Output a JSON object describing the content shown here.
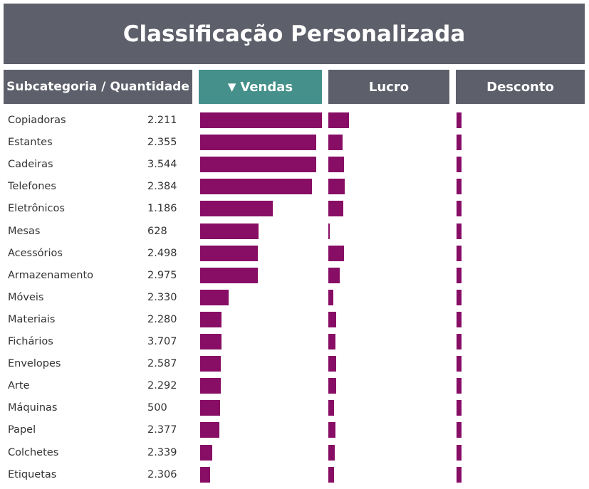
{
  "title": "Classificação Personalizada",
  "headers": {
    "subcategory": "Subcategoria / Quantidade",
    "sales": "Vendas",
    "sales_sort_icon": "sort-descending-icon",
    "profit": "Lucro",
    "discount": "Desconto"
  },
  "colors": {
    "header_bg": "#5d5f6a",
    "active_header_bg": "#45908b",
    "bar": "#870d65",
    "text": "#333333"
  },
  "chart_data": {
    "type": "bar",
    "orientation": "horizontal",
    "sort": "sales-descending",
    "categories": [
      "Copiadoras",
      "Estantes",
      "Cadeiras",
      "Telefones",
      "Eletrônicos",
      "Mesas",
      "Acessórios",
      "Armazenamento",
      "Móveis",
      "Materiais",
      "Fichários",
      "Envelopes",
      "Arte",
      "Máquinas",
      "Papel",
      "Colchetes",
      "Etiquetas"
    ],
    "quantity_labels": [
      "2.211",
      "2.355",
      "3.544",
      "2.384",
      "1.186",
      "628",
      "2.498",
      "2.975",
      "2.330",
      "2.280",
      "3.707",
      "2.587",
      "2.292",
      "500",
      "2.377",
      "2.339",
      "2.306"
    ],
    "series": [
      {
        "name": "Vendas",
        "values": [
          1.0,
          0.955,
          0.955,
          0.918,
          0.595,
          0.479,
          0.474,
          0.474,
          0.234,
          0.175,
          0.175,
          0.17,
          0.17,
          0.164,
          0.158,
          0.099,
          0.082
        ]
      },
      {
        "name": "Lucro",
        "values": [
          1.0,
          0.69,
          0.759,
          0.793,
          0.724,
          0.069,
          0.759,
          0.552,
          0.241,
          0.379,
          0.345,
          0.379,
          0.379,
          0.276,
          0.345,
          0.31,
          0.276
        ]
      },
      {
        "name": "Desconto",
        "values": [
          1,
          1,
          1,
          1,
          1,
          1,
          1,
          1,
          1,
          1,
          1,
          1,
          1,
          1,
          1,
          1,
          1
        ]
      }
    ],
    "axis_ranges": {
      "Vendas": [
        0,
        1
      ],
      "Lucro": [
        0,
        1
      ],
      "Desconto": [
        0,
        1
      ]
    },
    "value_note_units": "relative (bars unlabeled)"
  }
}
